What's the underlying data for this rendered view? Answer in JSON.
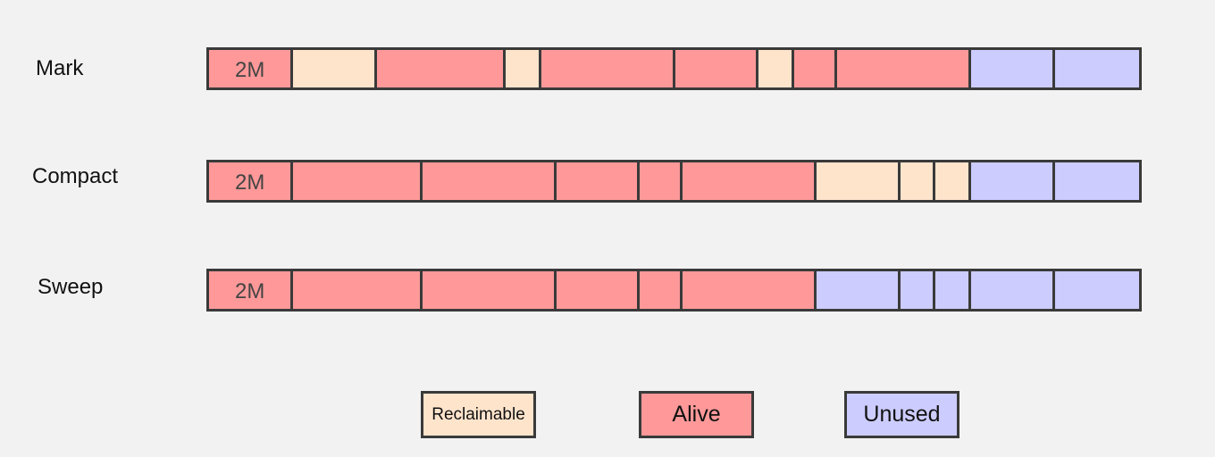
{
  "colors": {
    "alive": "#ff9999",
    "reclaimable": "#ffe4cc",
    "unused": "#ccccff"
  },
  "rows": [
    {
      "label": "Mark",
      "segments": [
        {
          "state": "alive",
          "text": "2M"
        },
        {
          "state": "reclaimable",
          "text": ""
        },
        {
          "state": "alive",
          "text": ""
        },
        {
          "state": "reclaimable",
          "text": ""
        },
        {
          "state": "alive",
          "text": ""
        },
        {
          "state": "alive",
          "text": ""
        },
        {
          "state": "reclaimable",
          "text": ""
        },
        {
          "state": "alive",
          "text": ""
        },
        {
          "state": "alive",
          "text": ""
        },
        {
          "state": "unused",
          "text": ""
        },
        {
          "state": "unused",
          "text": ""
        }
      ]
    },
    {
      "label": "Compact",
      "segments": [
        {
          "state": "alive",
          "text": "2M"
        },
        {
          "state": "alive",
          "text": ""
        },
        {
          "state": "alive",
          "text": ""
        },
        {
          "state": "alive",
          "text": ""
        },
        {
          "state": "alive",
          "text": ""
        },
        {
          "state": "alive",
          "text": ""
        },
        {
          "state": "reclaimable",
          "text": ""
        },
        {
          "state": "reclaimable",
          "text": ""
        },
        {
          "state": "reclaimable",
          "text": ""
        },
        {
          "state": "unused",
          "text": ""
        },
        {
          "state": "unused",
          "text": ""
        }
      ]
    },
    {
      "label": "Sweep",
      "segments": [
        {
          "state": "alive",
          "text": "2M"
        },
        {
          "state": "alive",
          "text": ""
        },
        {
          "state": "alive",
          "text": ""
        },
        {
          "state": "alive",
          "text": ""
        },
        {
          "state": "alive",
          "text": ""
        },
        {
          "state": "alive",
          "text": ""
        },
        {
          "state": "unused",
          "text": ""
        },
        {
          "state": "unused",
          "text": ""
        },
        {
          "state": "unused",
          "text": ""
        },
        {
          "state": "unused",
          "text": ""
        },
        {
          "state": "unused",
          "text": ""
        }
      ]
    }
  ],
  "legend": [
    {
      "state": "reclaimable",
      "label": "Reclaimable"
    },
    {
      "state": "alive",
      "label": "Alive"
    },
    {
      "state": "unused",
      "label": "Unused"
    }
  ]
}
